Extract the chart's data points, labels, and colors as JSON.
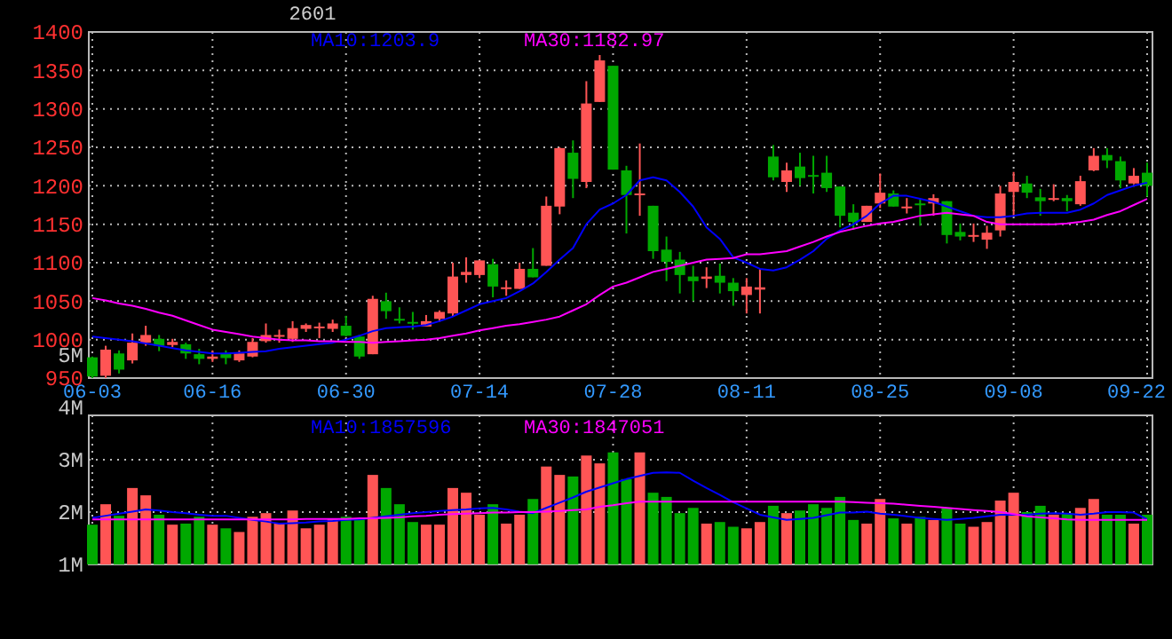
{
  "chart_data": [
    {
      "type": "candlestick",
      "title": "2601",
      "legend": "top",
      "grid": true,
      "categories": [
        "06-03",
        null,
        null,
        null,
        null,
        null,
        null,
        null,
        null,
        "06-16",
        null,
        null,
        null,
        null,
        null,
        null,
        null,
        null,
        null,
        "06-30",
        null,
        null,
        null,
        null,
        null,
        null,
        null,
        null,
        null,
        "07-14",
        null,
        null,
        null,
        null,
        null,
        null,
        null,
        null,
        null,
        "07-28",
        null,
        null,
        null,
        null,
        null,
        null,
        null,
        null,
        null,
        "08-11",
        null,
        null,
        null,
        null,
        null,
        null,
        null,
        null,
        null,
        "08-25",
        null,
        null,
        null,
        null,
        null,
        null,
        null,
        null,
        null,
        "09-08",
        null,
        null,
        null,
        null,
        null,
        null,
        null,
        null,
        null,
        "09-22"
      ],
      "ylim": [
        950,
        1400
      ],
      "yticks": [
        950,
        1000,
        1050,
        1100,
        1150,
        1200,
        1250,
        1300,
        1350,
        1400
      ],
      "ohlc": [
        [
          977,
          978,
          950,
          952
        ],
        [
          953,
          992,
          950,
          987
        ],
        [
          982,
          986,
          956,
          961
        ],
        [
          973,
          1008,
          969,
          996
        ],
        [
          996,
          1018,
          992,
          1006
        ],
        [
          1001,
          1006,
          985,
          992
        ],
        [
          993,
          1001,
          990,
          997
        ],
        [
          994,
          996,
          975,
          982
        ],
        [
          981,
          988,
          968,
          975
        ],
        [
          975,
          986,
          971,
          978
        ],
        [
          982,
          986,
          968,
          976
        ],
        [
          973,
          986,
          971,
          982
        ],
        [
          978,
          1002,
          977,
          997
        ],
        [
          998,
          1021,
          996,
          1006
        ],
        [
          1004,
          1013,
          996,
          1006
        ],
        [
          1001,
          1024,
          997,
          1015
        ],
        [
          1014,
          1021,
          1010,
          1019
        ],
        [
          1015,
          1022,
          1002,
          1017
        ],
        [
          1014,
          1026,
          1010,
          1021
        ],
        [
          1018,
          1031,
          1004,
          1005
        ],
        [
          1004,
          1006,
          975,
          978
        ],
        [
          981,
          1057,
          981,
          1053
        ],
        [
          1050,
          1061,
          1027,
          1037
        ],
        [
          1027,
          1042,
          1021,
          1025
        ],
        [
          1023,
          1036,
          1013,
          1022
        ],
        [
          1017,
          1032,
          1017,
          1024
        ],
        [
          1027,
          1038,
          1023,
          1036
        ],
        [
          1034,
          1100,
          1030,
          1082
        ],
        [
          1084,
          1107,
          1074,
          1088
        ],
        [
          1084,
          1103,
          1080,
          1103
        ],
        [
          1098,
          1105,
          1055,
          1069
        ],
        [
          1067,
          1077,
          1057,
          1068
        ],
        [
          1066,
          1100,
          1066,
          1092
        ],
        [
          1092,
          1119,
          1081,
          1081
        ],
        [
          1096,
          1186,
          1096,
          1174
        ],
        [
          1173,
          1250,
          1163,
          1249
        ],
        [
          1243,
          1259,
          1184,
          1209
        ],
        [
          1205,
          1336,
          1197,
          1307
        ],
        [
          1309,
          1370,
          1309,
          1363
        ],
        [
          1356,
          1356,
          1221,
          1221
        ],
        [
          1220,
          1226,
          1138,
          1188
        ],
        [
          1189,
          1255,
          1161,
          1190
        ],
        [
          1174,
          1174,
          1105,
          1115
        ],
        [
          1117,
          1134,
          1076,
          1101
        ],
        [
          1104,
          1114,
          1060,
          1084
        ],
        [
          1082,
          1096,
          1050,
          1076
        ],
        [
          1079,
          1094,
          1067,
          1082
        ],
        [
          1083,
          1099,
          1060,
          1074
        ],
        [
          1074,
          1080,
          1044,
          1063
        ],
        [
          1058,
          1080,
          1034,
          1069
        ],
        [
          1065,
          1092,
          1034,
          1068
        ],
        [
          1238,
          1253,
          1207,
          1211
        ],
        [
          1205,
          1230,
          1192,
          1220
        ],
        [
          1225,
          1243,
          1200,
          1210
        ],
        [
          1214,
          1239,
          1190,
          1213
        ],
        [
          1217,
          1239,
          1192,
          1197
        ],
        [
          1199,
          1199,
          1146,
          1161
        ],
        [
          1165,
          1176,
          1143,
          1153
        ],
        [
          1153,
          1174,
          1153,
          1174
        ],
        [
          1177,
          1216,
          1171,
          1191
        ],
        [
          1190,
          1194,
          1173,
          1173
        ],
        [
          1172,
          1184,
          1164,
          1173
        ],
        [
          1177,
          1182,
          1148,
          1176
        ],
        [
          1177,
          1189,
          1161,
          1184
        ],
        [
          1180,
          1180,
          1125,
          1136
        ],
        [
          1140,
          1151,
          1129,
          1134
        ],
        [
          1134,
          1151,
          1127,
          1136
        ],
        [
          1130,
          1148,
          1118,
          1139
        ],
        [
          1142,
          1200,
          1134,
          1190
        ],
        [
          1192,
          1218,
          1161,
          1205
        ],
        [
          1203,
          1213,
          1184,
          1191
        ],
        [
          1185,
          1196,
          1161,
          1180
        ],
        [
          1183,
          1202,
          1180,
          1184
        ],
        [
          1184,
          1188,
          1167,
          1180
        ],
        [
          1176,
          1213,
          1174,
          1206
        ],
        [
          1220,
          1249,
          1219,
          1239
        ],
        [
          1240,
          1249,
          1223,
          1233
        ],
        [
          1232,
          1238,
          1197,
          1207
        ],
        [
          1203,
          1223,
          1202,
          1213
        ],
        [
          1217,
          1230,
          1186,
          1200
        ]
      ],
      "series": [
        {
          "name": "MA10:1203.9",
          "type": "line",
          "color": "#0000ff",
          "values": [
            1004,
            1002,
            1000,
            998,
            995,
            992,
            989,
            986,
            984,
            982,
            982,
            983,
            984,
            985,
            988,
            990,
            992,
            994,
            996,
            1000,
            1005,
            1011,
            1015,
            1016,
            1017,
            1019,
            1024,
            1030,
            1038,
            1046,
            1050,
            1054,
            1063,
            1073,
            1088,
            1104,
            1119,
            1150,
            1169,
            1177,
            1188,
            1207,
            1211,
            1207,
            1192,
            1173,
            1146,
            1131,
            1107,
            1100,
            1092,
            1090,
            1094,
            1104,
            1115,
            1131,
            1142,
            1150,
            1161,
            1177,
            1187,
            1187,
            1183,
            1179,
            1173,
            1167,
            1161,
            1159,
            1159,
            1161,
            1164,
            1165,
            1165,
            1165,
            1169,
            1177,
            1188,
            1194,
            1200,
            1204
          ]
        },
        {
          "name": "MA30:1182.97",
          "type": "line",
          "color": "#ff00ff",
          "values": [
            1054,
            1051,
            1047,
            1044,
            1040,
            1035,
            1031,
            1025,
            1019,
            1013,
            1010,
            1007,
            1004,
            1002,
            1000,
            999,
            999,
            998,
            998,
            997,
            997,
            996,
            997,
            998,
            999,
            1000,
            1002,
            1005,
            1008,
            1012,
            1015,
            1018,
            1020,
            1023,
            1026,
            1030,
            1038,
            1046,
            1058,
            1069,
            1074,
            1081,
            1088,
            1092,
            1096,
            1100,
            1104,
            1105,
            1106,
            1111,
            1111,
            1113,
            1115,
            1121,
            1127,
            1134,
            1140,
            1144,
            1148,
            1151,
            1153,
            1157,
            1161,
            1163,
            1165,
            1163,
            1161,
            1153,
            1150,
            1150,
            1150,
            1150,
            1150,
            1151,
            1153,
            1156,
            1162,
            1167,
            1175,
            1183
          ]
        }
      ]
    },
    {
      "type": "bar",
      "legend": "top",
      "grid": true,
      "tick_labels": "y",
      "categories": [
        null,
        null,
        null,
        null,
        null,
        null,
        null,
        null,
        null,
        null,
        null,
        null,
        null,
        null,
        null,
        null,
        null,
        null,
        null,
        null,
        null,
        null,
        null,
        null,
        null,
        null,
        null,
        null,
        null,
        null,
        null,
        null,
        null,
        null,
        null,
        null,
        null,
        null,
        null,
        null,
        null,
        null,
        null,
        null,
        null,
        null,
        null,
        null,
        null,
        null,
        null,
        null,
        null,
        null,
        null,
        null,
        null,
        null,
        null,
        null,
        null,
        null,
        null,
        null,
        null,
        null,
        null,
        null,
        null,
        null,
        null,
        null,
        null,
        null,
        null,
        null,
        null,
        null,
        null,
        null
      ],
      "ylim": [
        1,
        5
      ],
      "yticks": [
        {
          "value": 1,
          "label": "1M"
        },
        {
          "value": 2,
          "label": "2M"
        },
        {
          "value": 3,
          "label": "3M"
        },
        {
          "value": 4,
          "label": "4M"
        },
        {
          "value": 5,
          "label": "5M"
        }
      ],
      "values": [
        1.76,
        2.15,
        1.93,
        2.46,
        2.32,
        1.95,
        1.76,
        1.78,
        1.91,
        1.76,
        1.69,
        1.62,
        1.91,
        1.98,
        1.78,
        2.03,
        1.69,
        1.76,
        1.86,
        1.91,
        1.86,
        2.71,
        2.46,
        2.15,
        1.81,
        1.76,
        1.76,
        2.46,
        2.37,
        1.95,
        2.15,
        1.78,
        1.95,
        2.25,
        2.87,
        2.71,
        2.68,
        3.08,
        2.93,
        3.14,
        2.63,
        3.14,
        2.37,
        2.29,
        1.98,
        2.08,
        1.78,
        1.81,
        1.72,
        1.69,
        1.81,
        2.12,
        1.98,
        2.03,
        2.15,
        2.08,
        2.29,
        1.85,
        1.78,
        2.25,
        1.88,
        1.78,
        1.91,
        1.85,
        2.08,
        1.78,
        1.72,
        1.81,
        2.22,
        2.37,
        2.0,
        2.12,
        1.95,
        1.98,
        2.08,
        2.25,
        1.95,
        1.95,
        1.78,
        1.95
      ],
      "colors": [
        "#00a800",
        "#ff5555",
        "#00a800",
        "#ff5555",
        "#ff5555",
        "#00a800",
        "#ff5555",
        "#00a800",
        "#00a800",
        "#ff5555",
        "#00a800",
        "#ff5555",
        "#ff5555",
        "#ff5555",
        "#ff5555",
        "#ff5555",
        "#ff5555",
        "#ff5555",
        "#ff5555",
        "#00a800",
        "#00a800",
        "#ff5555",
        "#00a800",
        "#00a800",
        "#00a800",
        "#ff5555",
        "#ff5555",
        "#ff5555",
        "#ff5555",
        "#ff5555",
        "#00a800",
        "#ff5555",
        "#ff5555",
        "#00a800",
        "#ff5555",
        "#ff5555",
        "#00a800",
        "#ff5555",
        "#ff5555",
        "#00a800",
        "#00a800",
        "#ff5555",
        "#00a800",
        "#00a800",
        "#00a800",
        "#00a800",
        "#ff5555",
        "#00a800",
        "#00a800",
        "#ff5555",
        "#ff5555",
        "#00a800",
        "#ff5555",
        "#00a800",
        "#00a800",
        "#00a800",
        "#00a800",
        "#00a800",
        "#ff5555",
        "#ff5555",
        "#00a800",
        "#ff5555",
        "#00a800",
        "#ff5555",
        "#00a800",
        "#00a800",
        "#ff5555",
        "#ff5555",
        "#ff5555",
        "#ff5555",
        "#00a800",
        "#00a800",
        "#ff5555",
        "#00a800",
        "#ff5555",
        "#ff5555",
        "#00a800",
        "#00a800",
        "#ff5555",
        "#00a800"
      ],
      "series": [
        {
          "name": "MA10:1857596",
          "type": "line",
          "color": "#0000ff",
          "values": [
            1.89,
            1.93,
            1.97,
            2.01,
            2.05,
            2.03,
            2.0,
            1.98,
            1.95,
            1.93,
            1.93,
            1.89,
            1.85,
            1.82,
            1.78,
            1.79,
            1.8,
            1.82,
            1.83,
            1.85,
            1.86,
            1.89,
            1.92,
            1.95,
            1.98,
            2.0,
            2.02,
            2.04,
            2.05,
            2.07,
            2.08,
            2.05,
            2.01,
            1.98,
            2.08,
            2.18,
            2.28,
            2.39,
            2.47,
            2.55,
            2.63,
            2.69,
            2.75,
            2.76,
            2.75,
            2.6,
            2.46,
            2.33,
            2.19,
            2.07,
            1.95,
            1.9,
            1.85,
            1.87,
            1.89,
            1.94,
            1.99,
            1.99,
            2.01,
            1.97,
            1.95,
            1.92,
            1.89,
            1.87,
            1.85,
            1.87,
            1.89,
            1.92,
            1.95,
            1.95,
            1.95,
            1.97,
            1.98,
            1.97,
            1.95,
            1.97,
            2.0,
            2.0,
            1.99,
            1.86
          ]
        },
        {
          "name": "MA30:1847051",
          "type": "line",
          "color": "#ff00ff",
          "values": [
            1.86,
            1.86,
            1.86,
            1.86,
            1.86,
            1.86,
            1.86,
            1.86,
            1.86,
            1.86,
            1.86,
            1.86,
            1.86,
            1.86,
            1.86,
            1.86,
            1.87,
            1.87,
            1.87,
            1.87,
            1.88,
            1.88,
            1.89,
            1.9,
            1.92,
            1.93,
            1.95,
            1.96,
            1.97,
            1.98,
            1.99,
            1.99,
            2.0,
            2.0,
            2.01,
            2.02,
            2.04,
            2.05,
            2.1,
            2.13,
            2.17,
            2.2,
            2.2,
            2.2,
            2.2,
            2.2,
            2.2,
            2.2,
            2.2,
            2.2,
            2.2,
            2.2,
            2.2,
            2.2,
            2.2,
            2.2,
            2.2,
            2.19,
            2.18,
            2.17,
            2.16,
            2.14,
            2.12,
            2.1,
            2.08,
            2.06,
            2.04,
            2.02,
            2.0,
            1.96,
            1.92,
            1.9,
            1.88,
            1.86,
            1.85,
            1.85,
            1.85,
            1.85,
            1.85,
            1.85
          ]
        }
      ]
    }
  ]
}
